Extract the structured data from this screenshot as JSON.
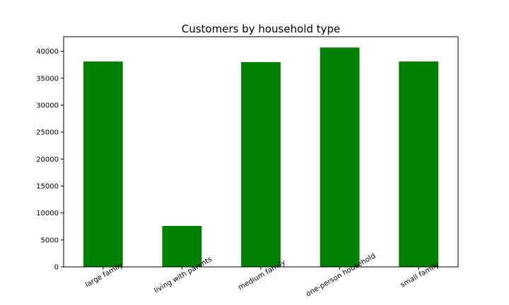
{
  "chart_data": {
    "type": "bar",
    "title": "Customers by household type",
    "xlabel": "",
    "ylabel": "",
    "categories": [
      "large family",
      "living with parents",
      "medium family",
      "one-person household",
      "small family"
    ],
    "values": [
      38100,
      7600,
      38000,
      40700,
      38100
    ],
    "ylim": [
      0,
      42700
    ],
    "yticks": [
      0,
      5000,
      10000,
      15000,
      20000,
      25000,
      30000,
      35000,
      40000
    ],
    "bar_color": "#008000",
    "grid": false,
    "legend": "none"
  }
}
